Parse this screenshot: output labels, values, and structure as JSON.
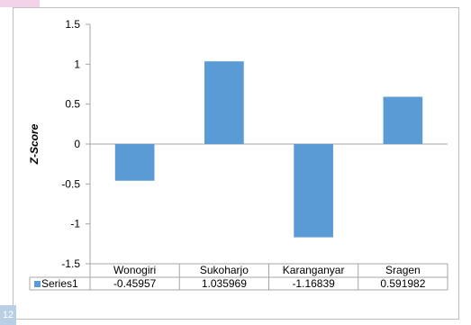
{
  "page": {
    "page_number": "12"
  },
  "chart_data": {
    "type": "bar",
    "title": "",
    "xlabel": "",
    "ylabel": "Z-Score",
    "ylim": [
      -1.5,
      1.5
    ],
    "yticks": [
      "1.5",
      "1",
      "0.5",
      "0",
      "-0.5",
      "-1",
      "-1.5"
    ],
    "grid": false,
    "legend": "data-table",
    "categories": [
      "Wonogiri",
      "Sukoharjo",
      "Karanganyar",
      "Sragen"
    ],
    "series": [
      {
        "name": "Series1",
        "color": "#5b9bd5",
        "values": [
          -0.45957,
          1.035969,
          -1.16839,
          0.591982
        ],
        "value_labels": [
          "-0.45957",
          "1.035969",
          "-1.16839",
          "0.591982"
        ]
      }
    ]
  }
}
